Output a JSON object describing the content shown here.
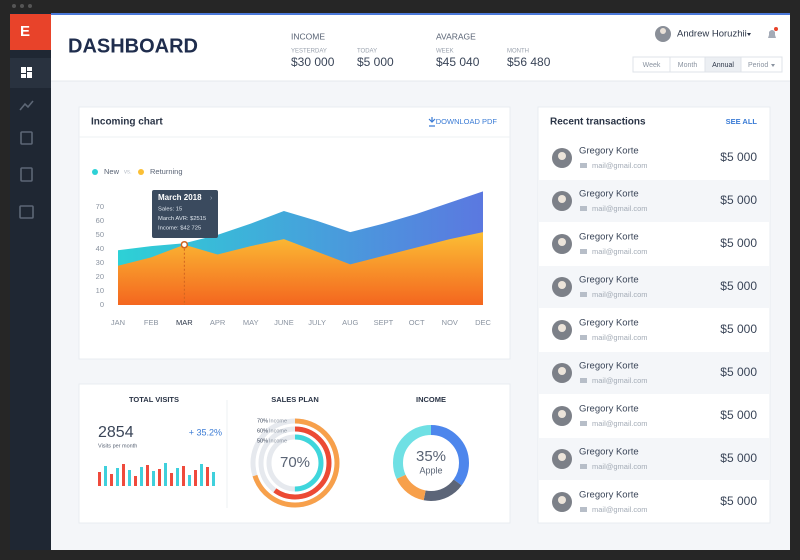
{
  "sidebar": {
    "logo": "E"
  },
  "header": {
    "title": "DASHBOARD",
    "income": {
      "label": "INCOME",
      "yesterday": {
        "label": "YESTERDAY",
        "value": "$30 000"
      },
      "today": {
        "label": "TODAY",
        "value": "$5 000"
      }
    },
    "average": {
      "label": "AVARAGE",
      "week": {
        "label": "WEEK",
        "value": "$45 040"
      },
      "month": {
        "label": "MONTH",
        "value": "$56 480"
      }
    },
    "user": "Andrew Horuzhii",
    "periods": [
      "Week",
      "Month",
      "Annual",
      "Period"
    ],
    "active_period": 2
  },
  "incoming": {
    "title": "Incoming chart",
    "download": "DOWNLOAD PDF",
    "vs": "vs.",
    "tooltip": {
      "title": "March 2018",
      "lines": [
        "Sales: 15",
        "March AVR: $2515",
        "Income: $42 725"
      ]
    }
  },
  "visits": {
    "value": "2854",
    "caption": "Visits per month",
    "change": "+ 35.2%"
  },
  "transactions": {
    "title": "Recent transactions",
    "see_all": "SEE ALL",
    "rows": [
      {
        "name": "Gregory Korte",
        "email": "mail@gmail.com",
        "amount": "$5 000"
      },
      {
        "name": "Gregory Korte",
        "email": "mail@gmail.com",
        "amount": "$5 000"
      },
      {
        "name": "Gregory Korte",
        "email": "mail@gmail.com",
        "amount": "$5 000"
      },
      {
        "name": "Gregory Korte",
        "email": "mail@gmail.com",
        "amount": "$5 000"
      },
      {
        "name": "Gregory Korte",
        "email": "mail@gmail.com",
        "amount": "$5 000"
      },
      {
        "name": "Gregory Korte",
        "email": "mail@gmail.com",
        "amount": "$5 000"
      },
      {
        "name": "Gregory Korte",
        "email": "mail@gmail.com",
        "amount": "$5 000"
      },
      {
        "name": "Gregory Korte",
        "email": "mail@gmail.com",
        "amount": "$5 000"
      },
      {
        "name": "Gregory Korte",
        "email": "mail@gmail.com",
        "amount": "$5 000"
      }
    ]
  },
  "chart_data": [
    {
      "type": "area",
      "categories": [
        "JAN",
        "FEB",
        "MAR",
        "APR",
        "MAY",
        "JUNE",
        "JULY",
        "AUG",
        "SEPT",
        "OCT",
        "NOV",
        "DEC"
      ],
      "series": [
        {
          "name": "New",
          "color": "#2dd1d6",
          "gradient_end": "#5b78e0",
          "values": [
            39,
            42,
            44,
            50,
            58,
            67,
            60,
            52,
            58,
            65,
            73,
            81
          ]
        },
        {
          "name": "Returning",
          "color": "#fbbf35",
          "gradient_end": "#f4661f",
          "values": [
            28,
            34,
            43,
            36,
            42,
            47,
            38,
            29,
            35,
            41,
            47,
            52
          ]
        }
      ],
      "ylim": [
        0,
        82
      ],
      "yticks": [
        0,
        10,
        20,
        30,
        40,
        50,
        60,
        70
      ],
      "grid": false,
      "highlight": 2
    },
    {
      "type": "bar",
      "title": "TOTAL VISITS",
      "colors": [
        "#ef4a3c",
        "#3fd0dc"
      ],
      "values": [
        14,
        20,
        12,
        18,
        22,
        16,
        10,
        19,
        21,
        15,
        17,
        23,
        13,
        18,
        20,
        11,
        16,
        22,
        19,
        14
      ]
    },
    {
      "type": "radial",
      "title": "SALES PLAN",
      "track_color": "#e6e9ee",
      "series": [
        {
          "name": "Income",
          "value": 70,
          "value_label": "70%",
          "color": "#f7a04b"
        },
        {
          "name": "Income",
          "value": 60,
          "value_label": "60%",
          "color": "#ec4a34"
        },
        {
          "name": "Income",
          "value": 50,
          "value_label": "50%",
          "color": "#3fd6dc"
        }
      ]
    },
    {
      "type": "donut",
      "title": "INCOME",
      "center_label": "35%",
      "center_sub": "Apple",
      "values": [
        35,
        18,
        15,
        32
      ],
      "colors": [
        "#4d86ec",
        "#5c6578",
        "#f7a04b",
        "#6fe0e4"
      ]
    }
  ]
}
